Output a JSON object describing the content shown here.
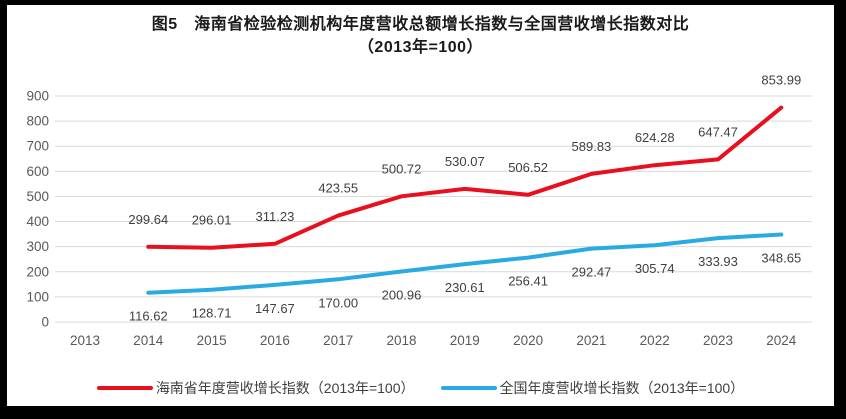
{
  "frame": {
    "border_color": "#000000",
    "chart_background": "#ffffff"
  },
  "chart_data": {
    "type": "line",
    "title": "图5　海南省检验检测机构年度营收总额增长指数与全国营收增长指数对比",
    "subtitle": "（2013年=100）",
    "categories": [
      "2013",
      "2014",
      "2015",
      "2016",
      "2017",
      "2018",
      "2019",
      "2020",
      "2021",
      "2022",
      "2023",
      "2024"
    ],
    "ylim": [
      0,
      900
    ],
    "ytick_step": 100,
    "ytick_labels": [
      "0",
      "100",
      "200",
      "300",
      "400",
      "500",
      "600",
      "700",
      "800",
      "900"
    ],
    "grid": "horizontal",
    "legend_position": "bottom",
    "axis_tick_color": "#595959",
    "data_label_color": "#404040",
    "gridline_color": "#d9d9d9",
    "series": [
      {
        "name": "海南省年度营收增长指数（2013年=100）",
        "color": "#e8101e",
        "categories": [
          "2014",
          "2015",
          "2016",
          "2017",
          "2018",
          "2019",
          "2020",
          "2021",
          "2022",
          "2023",
          "2024"
        ],
        "values": [
          299.64,
          296.01,
          311.23,
          423.55,
          500.72,
          530.07,
          506.52,
          589.83,
          624.28,
          647.47,
          853.99
        ],
        "labels": [
          "299.64",
          "296.01",
          "311.23",
          "423.55",
          "500.72",
          "530.07",
          "506.52",
          "589.83",
          "624.28",
          "647.47",
          "853.99"
        ],
        "label_position": "above"
      },
      {
        "name": "全国年度营收增长指数（2013年=100）",
        "color": "#29abe2",
        "categories": [
          "2014",
          "2015",
          "2016",
          "2017",
          "2018",
          "2019",
          "2020",
          "2021",
          "2022",
          "2023",
          "2024"
        ],
        "values": [
          116.62,
          128.71,
          147.67,
          170.0,
          200.96,
          230.61,
          256.41,
          292.47,
          305.74,
          333.93,
          348.65
        ],
        "labels": [
          "116.62",
          "128.71",
          "147.67",
          "170.00",
          "200.96",
          "230.61",
          "256.41",
          "292.47",
          "305.74",
          "333.93",
          "348.65"
        ],
        "label_position": "below"
      }
    ]
  }
}
